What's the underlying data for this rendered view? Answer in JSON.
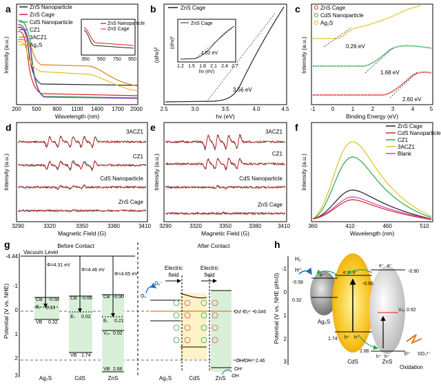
{
  "panels": {
    "a": {
      "label": "a",
      "xlabel": "Wavelength (nm)",
      "ylabel": "Intensity (a.u.)",
      "xticks": [
        "200",
        "500",
        "800",
        "1100",
        "1400",
        "1700",
        "2000"
      ],
      "legend": [
        "ZnS Nanoparticle",
        "ZnS Cage",
        "CdS Nanoparticle",
        "CZ1",
        "3ACZ1",
        "Ag₂S"
      ],
      "colors": [
        "#222222",
        "#d62020",
        "#2aa84a",
        "#8a3fd0",
        "#e07b20",
        "#e0c020"
      ],
      "inset": {
        "legend": [
          "ZnS Nanoparticle",
          "ZnS Cage"
        ],
        "xticks": [
          "350",
          "550",
          "750",
          "950"
        ]
      }
    },
    "b": {
      "label": "b",
      "xlabel": "hv (eV)",
      "ylabel": "(αhv)²",
      "xticks": [
        "2.5",
        "3.0",
        "3.5",
        "4.0",
        "4.5"
      ],
      "legend": [
        "ZnS Cage"
      ],
      "annotation": "3.56 eV",
      "inset": {
        "legend": "ZnS Cage",
        "annotation": "1.52 eV",
        "xlabel": "hv (eV)",
        "ylabel": "(αhv)²",
        "xticks": [
          "1.2",
          "1.5",
          "1.8",
          "2.1",
          "2.4",
          "2.7"
        ]
      }
    },
    "c": {
      "label": "c",
      "xlabel": "Binding Energy (eV)",
      "ylabel": "Intensity (a.u.)",
      "xticks": [
        "-1",
        "0",
        "1",
        "2",
        "3",
        "4",
        "5"
      ],
      "legend": [
        "ZnS Cage",
        "CdS Nanoparticle",
        "Ag₂S"
      ],
      "annotations": [
        "0.26 eV",
        "1.68 eV",
        "2.60 eV"
      ]
    },
    "d": {
      "label": "d",
      "xlabel": "Magnetic Field (G)",
      "ylabel": "Intensity (a.u.)",
      "xticks": [
        "3290",
        "3320",
        "3350",
        "3380",
        "3410"
      ],
      "traces": [
        "3ACZ1",
        "CZ1",
        "CdS Nanoparticle",
        "ZnS Cage"
      ]
    },
    "e": {
      "label": "e",
      "xlabel": "Magnetic Field (G)",
      "ylabel": "Intensity (a.u.)",
      "xticks": [
        "3290",
        "3320",
        "3350",
        "3380",
        "3410"
      ],
      "traces": [
        "3ACZ1",
        "CZ1",
        "CdS Nanoparticle",
        "ZnS Cage"
      ]
    },
    "f": {
      "label": "f",
      "xlabel": "Wavelength (nm)",
      "ylabel": "Intensity (a.u.)",
      "xticks": [
        "360",
        "410",
        "460",
        "510"
      ],
      "legend": [
        "ZnS Cage",
        "CdS Nanoparticle",
        "CZ1",
        "3ACZ1",
        "Blank"
      ],
      "colors": [
        "#222222",
        "#d62020",
        "#2aa84a",
        "#e0c020",
        "#d040c0"
      ]
    },
    "g": {
      "label": "g",
      "ylabel": "Potential (V vs. NHE)",
      "yticks": [
        "-4.44",
        "-1",
        "0",
        "1",
        "2",
        "3"
      ],
      "vacuum": "Vacuum Level",
      "before": "Before Contact",
      "after": "After Contact",
      "work_functions": [
        "Φ=4.31 eV",
        "Φ=4.46 eV",
        "Φ=4.65 eV"
      ],
      "materials": [
        "Ag₂S",
        "CdS",
        "ZnS"
      ],
      "after_materials": [
        "Ag₂S",
        "CdS",
        "ZnS"
      ],
      "cb": [
        "CB",
        "CB",
        "CB"
      ],
      "vb": [
        "VB",
        "VB",
        "VB"
      ],
      "ef": [
        "Eᵣ",
        "Eᵣ",
        "Eᵣ"
      ],
      "cb_values": [
        "-0.58",
        "-0.66",
        "-0.90"
      ],
      "vb_values": [
        "0.32",
        "1.74",
        "2.66"
      ],
      "ef_values": [
        "-0.13",
        "0.02",
        "0.21"
      ],
      "vzn": "Vₓₙ",
      "vzn_value": "0.92",
      "field": [
        "Electric",
        "field",
        "Electric",
        "field"
      ],
      "o2": "O₂",
      "o2_radical": "·O₂⁻",
      "redox1": "O₂/·O₂⁻ -0.046",
      "redox2": "·OH/OH⁻ 2.46",
      "oh": "·OH",
      "ohm": "OH⁻"
    },
    "h": {
      "label": "h",
      "ylabel": "Potential (V vs. NHE pH=0)",
      "yticks": [
        "-1",
        "0",
        "1",
        "2",
        "3"
      ],
      "h2": "H₂",
      "hplus": "H⁺",
      "values": [
        "-0.58",
        "-0.66",
        "-0.90",
        "0.32",
        "1.74",
        "2.66",
        "0.92"
      ],
      "electrons": [
        "e⁻",
        "e⁻",
        "e⁻",
        "e⁻",
        "e⁻"
      ],
      "holes": [
        "h⁺",
        "h⁺",
        "h⁺",
        "h⁺"
      ],
      "materials": [
        "Ag₂S",
        "CdS",
        "ZnS"
      ],
      "vzn": "Vₓₙ",
      "s2": "S²⁻",
      "so3": "SO₃²⁻",
      "oxidation": "Oxidation"
    }
  }
}
